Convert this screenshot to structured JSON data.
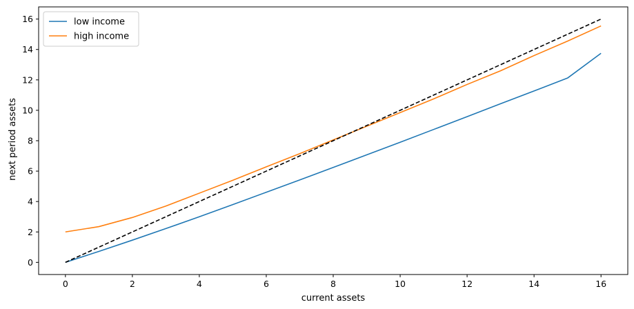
{
  "chart_data": {
    "type": "line",
    "title": "",
    "xlabel": "current assets",
    "ylabel": "next period assets",
    "xlim": [
      -0.8,
      16.8
    ],
    "ylim": [
      -0.8,
      16.8
    ],
    "xticks": [
      0,
      2,
      4,
      6,
      8,
      10,
      12,
      14,
      16
    ],
    "yticks": [
      0,
      2,
      4,
      6,
      8,
      10,
      12,
      14,
      16
    ],
    "grid": false,
    "legend_position": "top-left",
    "series": [
      {
        "name": "low income",
        "color": "#1f77b4",
        "dashed": false,
        "x": [
          0,
          1,
          2,
          3,
          4,
          5,
          6,
          7,
          8,
          9,
          10,
          11,
          12,
          13,
          14,
          15,
          16
        ],
        "y": [
          0,
          0.72,
          1.46,
          2.22,
          3.0,
          3.8,
          4.61,
          5.42,
          6.24,
          7.07,
          7.9,
          8.74,
          9.58,
          10.43,
          11.27,
          12.12,
          13.75
        ]
      },
      {
        "name": "high income",
        "color": "#ff7f0e",
        "dashed": false,
        "x": [
          0,
          1,
          2,
          3,
          4,
          5,
          6,
          7,
          8,
          9,
          10,
          11,
          12,
          13,
          14,
          15,
          16
        ],
        "y": [
          2.0,
          2.35,
          2.95,
          3.7,
          4.55,
          5.4,
          6.28,
          7.15,
          8.05,
          8.95,
          9.85,
          10.75,
          11.7,
          12.6,
          13.6,
          14.55,
          15.55
        ]
      },
      {
        "name": "",
        "color": "#000000",
        "dashed": true,
        "x": [
          0,
          16
        ],
        "y": [
          0,
          16
        ]
      }
    ]
  }
}
